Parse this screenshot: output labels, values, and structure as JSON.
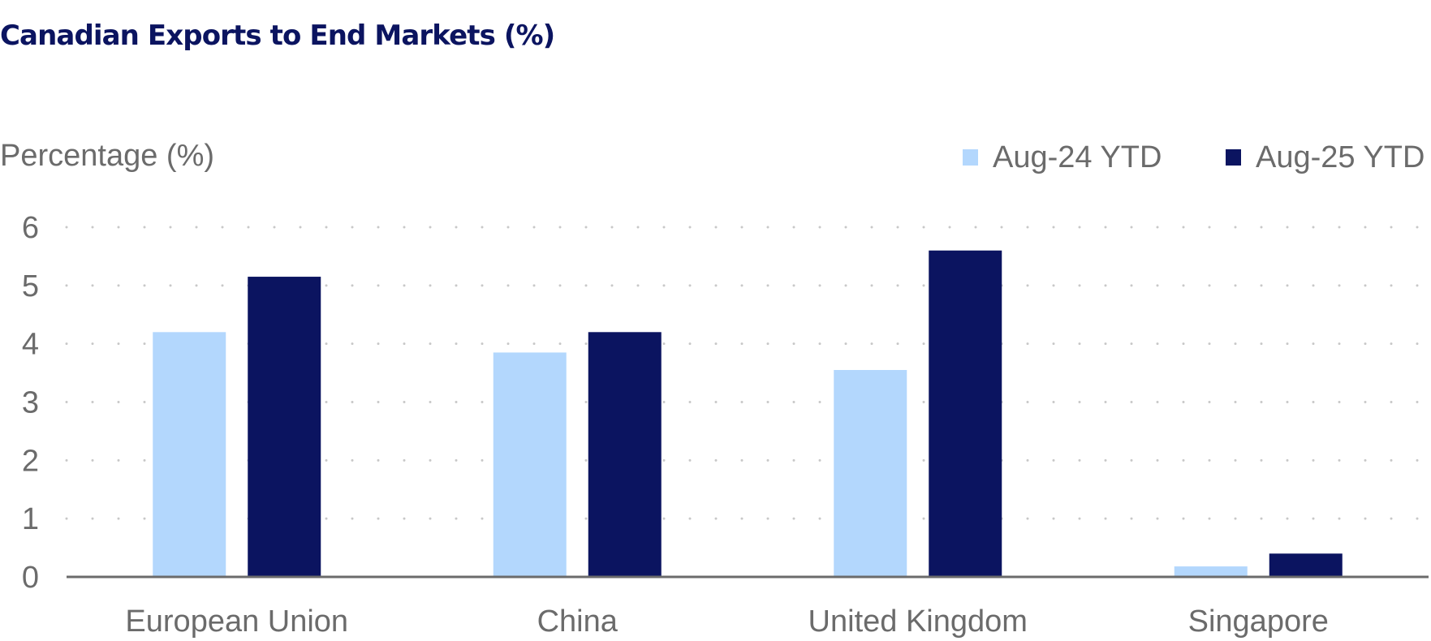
{
  "chart_data": {
    "type": "bar",
    "title": "Canadian Exports to End Markets (%)",
    "ylabel": "Percentage (%)",
    "xlabel": "",
    "categories": [
      "European Union",
      "China",
      "United Kingdom",
      "Singapore"
    ],
    "series": [
      {
        "name": "Aug-24 YTD",
        "color": "#b3d7fd",
        "values": [
          4.2,
          3.85,
          3.55,
          0.18
        ]
      },
      {
        "name": "Aug-25 YTD",
        "color": "#0b1460",
        "values": [
          5.15,
          4.2,
          5.6,
          0.4
        ]
      }
    ],
    "ylim": [
      0,
      6
    ],
    "yticks": [
      "0",
      "1",
      "2",
      "3",
      "4",
      "5",
      "6"
    ],
    "grid": "horizontal dotted",
    "legend_position": "top-right"
  }
}
